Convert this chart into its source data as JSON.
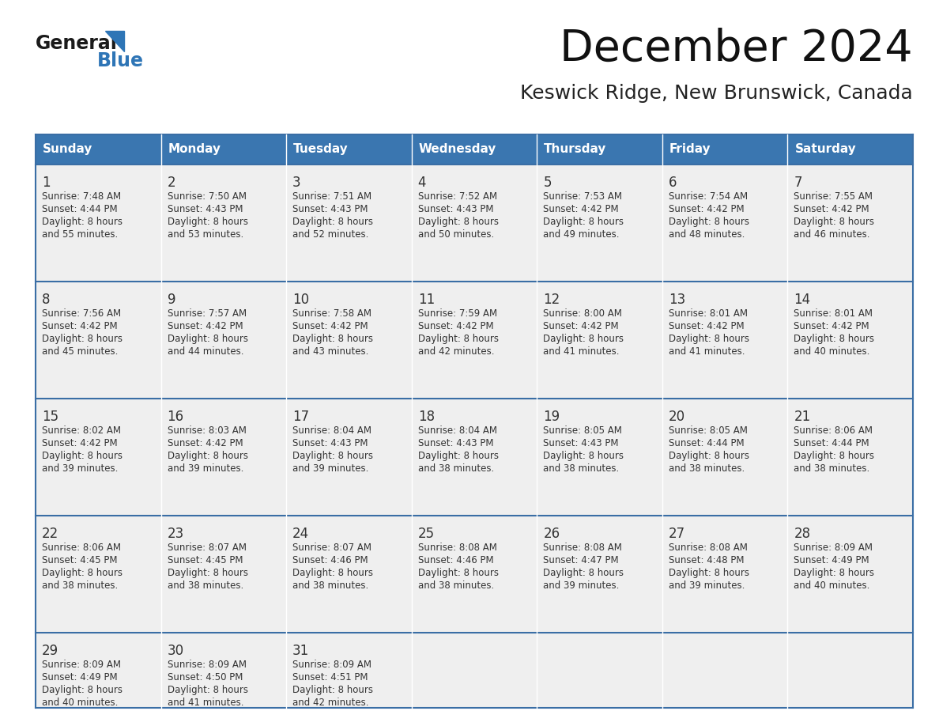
{
  "title": "December 2024",
  "subtitle": "Keswick Ridge, New Brunswick, Canada",
  "header_bg": "#3A76B0",
  "header_text_color": "#FFFFFF",
  "row_bg": "#EFEFEF",
  "cell_text_color": "#333333",
  "grid_line_color": "#3A6EA5",
  "col_line_color": "#CCCCCC",
  "days_of_week": [
    "Sunday",
    "Monday",
    "Tuesday",
    "Wednesday",
    "Thursday",
    "Friday",
    "Saturday"
  ],
  "weeks": [
    [
      {
        "day": "1",
        "sunrise": "7:48 AM",
        "sunset": "4:44 PM",
        "daylight_line1": "Daylight: 8 hours",
        "daylight_line2": "and 55 minutes."
      },
      {
        "day": "2",
        "sunrise": "7:50 AM",
        "sunset": "4:43 PM",
        "daylight_line1": "Daylight: 8 hours",
        "daylight_line2": "and 53 minutes."
      },
      {
        "day": "3",
        "sunrise": "7:51 AM",
        "sunset": "4:43 PM",
        "daylight_line1": "Daylight: 8 hours",
        "daylight_line2": "and 52 minutes."
      },
      {
        "day": "4",
        "sunrise": "7:52 AM",
        "sunset": "4:43 PM",
        "daylight_line1": "Daylight: 8 hours",
        "daylight_line2": "and 50 minutes."
      },
      {
        "day": "5",
        "sunrise": "7:53 AM",
        "sunset": "4:42 PM",
        "daylight_line1": "Daylight: 8 hours",
        "daylight_line2": "and 49 minutes."
      },
      {
        "day": "6",
        "sunrise": "7:54 AM",
        "sunset": "4:42 PM",
        "daylight_line1": "Daylight: 8 hours",
        "daylight_line2": "and 48 minutes."
      },
      {
        "day": "7",
        "sunrise": "7:55 AM",
        "sunset": "4:42 PM",
        "daylight_line1": "Daylight: 8 hours",
        "daylight_line2": "and 46 minutes."
      }
    ],
    [
      {
        "day": "8",
        "sunrise": "7:56 AM",
        "sunset": "4:42 PM",
        "daylight_line1": "Daylight: 8 hours",
        "daylight_line2": "and 45 minutes."
      },
      {
        "day": "9",
        "sunrise": "7:57 AM",
        "sunset": "4:42 PM",
        "daylight_line1": "Daylight: 8 hours",
        "daylight_line2": "and 44 minutes."
      },
      {
        "day": "10",
        "sunrise": "7:58 AM",
        "sunset": "4:42 PM",
        "daylight_line1": "Daylight: 8 hours",
        "daylight_line2": "and 43 minutes."
      },
      {
        "day": "11",
        "sunrise": "7:59 AM",
        "sunset": "4:42 PM",
        "daylight_line1": "Daylight: 8 hours",
        "daylight_line2": "and 42 minutes."
      },
      {
        "day": "12",
        "sunrise": "8:00 AM",
        "sunset": "4:42 PM",
        "daylight_line1": "Daylight: 8 hours",
        "daylight_line2": "and 41 minutes."
      },
      {
        "day": "13",
        "sunrise": "8:01 AM",
        "sunset": "4:42 PM",
        "daylight_line1": "Daylight: 8 hours",
        "daylight_line2": "and 41 minutes."
      },
      {
        "day": "14",
        "sunrise": "8:01 AM",
        "sunset": "4:42 PM",
        "daylight_line1": "Daylight: 8 hours",
        "daylight_line2": "and 40 minutes."
      }
    ],
    [
      {
        "day": "15",
        "sunrise": "8:02 AM",
        "sunset": "4:42 PM",
        "daylight_line1": "Daylight: 8 hours",
        "daylight_line2": "and 39 minutes."
      },
      {
        "day": "16",
        "sunrise": "8:03 AM",
        "sunset": "4:42 PM",
        "daylight_line1": "Daylight: 8 hours",
        "daylight_line2": "and 39 minutes."
      },
      {
        "day": "17",
        "sunrise": "8:04 AM",
        "sunset": "4:43 PM",
        "daylight_line1": "Daylight: 8 hours",
        "daylight_line2": "and 39 minutes."
      },
      {
        "day": "18",
        "sunrise": "8:04 AM",
        "sunset": "4:43 PM",
        "daylight_line1": "Daylight: 8 hours",
        "daylight_line2": "and 38 minutes."
      },
      {
        "day": "19",
        "sunrise": "8:05 AM",
        "sunset": "4:43 PM",
        "daylight_line1": "Daylight: 8 hours",
        "daylight_line2": "and 38 minutes."
      },
      {
        "day": "20",
        "sunrise": "8:05 AM",
        "sunset": "4:44 PM",
        "daylight_line1": "Daylight: 8 hours",
        "daylight_line2": "and 38 minutes."
      },
      {
        "day": "21",
        "sunrise": "8:06 AM",
        "sunset": "4:44 PM",
        "daylight_line1": "Daylight: 8 hours",
        "daylight_line2": "and 38 minutes."
      }
    ],
    [
      {
        "day": "22",
        "sunrise": "8:06 AM",
        "sunset": "4:45 PM",
        "daylight_line1": "Daylight: 8 hours",
        "daylight_line2": "and 38 minutes."
      },
      {
        "day": "23",
        "sunrise": "8:07 AM",
        "sunset": "4:45 PM",
        "daylight_line1": "Daylight: 8 hours",
        "daylight_line2": "and 38 minutes."
      },
      {
        "day": "24",
        "sunrise": "8:07 AM",
        "sunset": "4:46 PM",
        "daylight_line1": "Daylight: 8 hours",
        "daylight_line2": "and 38 minutes."
      },
      {
        "day": "25",
        "sunrise": "8:08 AM",
        "sunset": "4:46 PM",
        "daylight_line1": "Daylight: 8 hours",
        "daylight_line2": "and 38 minutes."
      },
      {
        "day": "26",
        "sunrise": "8:08 AM",
        "sunset": "4:47 PM",
        "daylight_line1": "Daylight: 8 hours",
        "daylight_line2": "and 39 minutes."
      },
      {
        "day": "27",
        "sunrise": "8:08 AM",
        "sunset": "4:48 PM",
        "daylight_line1": "Daylight: 8 hours",
        "daylight_line2": "and 39 minutes."
      },
      {
        "day": "28",
        "sunrise": "8:09 AM",
        "sunset": "4:49 PM",
        "daylight_line1": "Daylight: 8 hours",
        "daylight_line2": "and 40 minutes."
      }
    ],
    [
      {
        "day": "29",
        "sunrise": "8:09 AM",
        "sunset": "4:49 PM",
        "daylight_line1": "Daylight: 8 hours",
        "daylight_line2": "and 40 minutes."
      },
      {
        "day": "30",
        "sunrise": "8:09 AM",
        "sunset": "4:50 PM",
        "daylight_line1": "Daylight: 8 hours",
        "daylight_line2": "and 41 minutes."
      },
      {
        "day": "31",
        "sunrise": "8:09 AM",
        "sunset": "4:51 PM",
        "daylight_line1": "Daylight: 8 hours",
        "daylight_line2": "and 42 minutes."
      },
      null,
      null,
      null,
      null
    ]
  ],
  "logo_general_color": "#1A1A1A",
  "logo_blue_color": "#2E75B6",
  "logo_triangle_color": "#2E75B6"
}
